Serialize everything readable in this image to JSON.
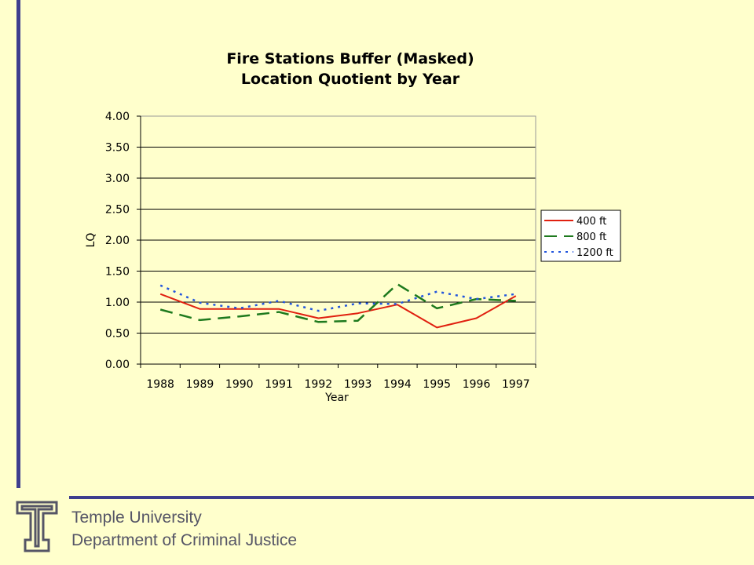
{
  "chart_data": {
    "type": "line",
    "title_lines": [
      "Fire Stations Buffer (Masked)",
      "Location Quotient by Year"
    ],
    "xlabel": "Year",
    "ylabel": "LQ",
    "categories": [
      "1988",
      "1989",
      "1990",
      "1991",
      "1992",
      "1993",
      "1994",
      "1995",
      "1996",
      "1997"
    ],
    "ylim": [
      0,
      4
    ],
    "yticks": [
      "0.00",
      "0.50",
      "1.00",
      "1.50",
      "2.00",
      "2.50",
      "3.00",
      "3.50",
      "4.00"
    ],
    "grid": "horizontal",
    "legend_position": "right",
    "series": [
      {
        "name": "400 ft",
        "color": "#E02010",
        "dash": "solid",
        "values": [
          1.13,
          0.89,
          0.89,
          0.89,
          0.74,
          0.82,
          0.96,
          0.59,
          0.74,
          1.1
        ]
      },
      {
        "name": "800 ft",
        "color": "#1E7A1E",
        "dash": "long-dash",
        "values": [
          0.88,
          0.71,
          0.77,
          0.84,
          0.68,
          0.7,
          1.29,
          0.9,
          1.05,
          1.02
        ]
      },
      {
        "name": "1200 ft",
        "color": "#2255DD",
        "dash": "dot",
        "values": [
          1.27,
          0.99,
          0.9,
          1.02,
          0.86,
          0.98,
          0.97,
          1.17,
          1.05,
          1.13
        ]
      }
    ]
  },
  "footer": {
    "line1": "Temple University",
    "line2": "Department of Criminal Justice"
  },
  "colors": {
    "background": "#FFFFCC",
    "accent_bar": "#3E3E8E"
  },
  "logo_icon": "temple-t-logo-icon"
}
